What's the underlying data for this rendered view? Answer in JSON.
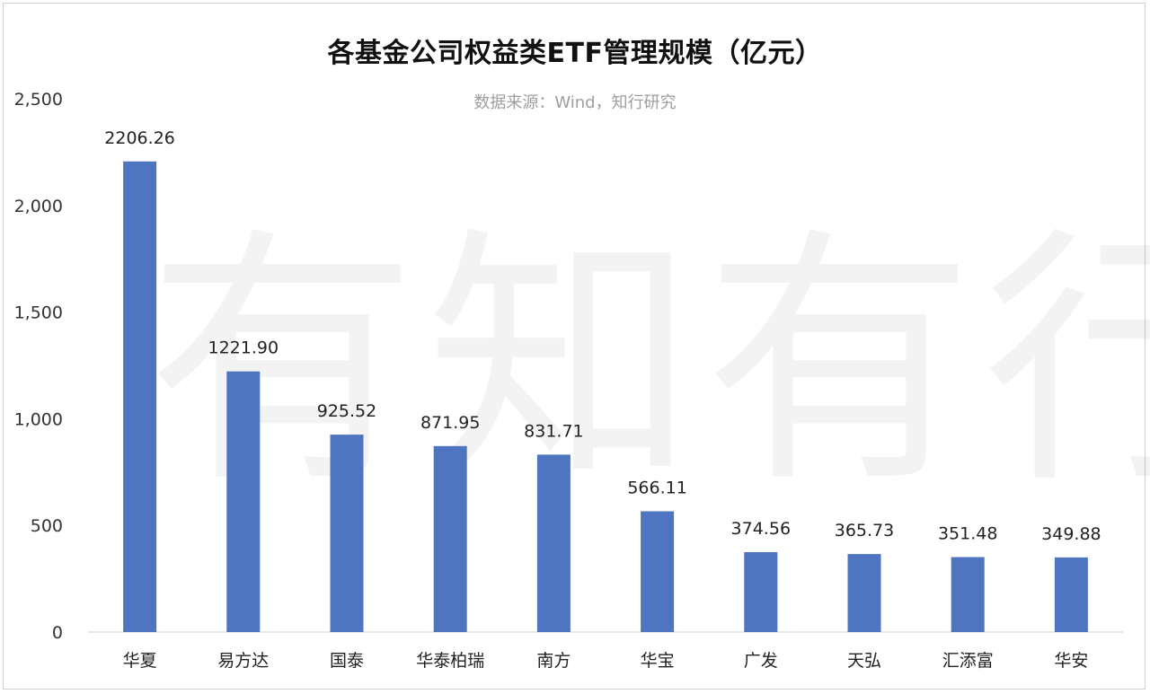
{
  "chart_data": {
    "type": "bar",
    "title": "各基金公司权益类ETF管理规模（亿元）",
    "subtitle": "数据来源：Wind，知行研究",
    "categories": [
      "华夏",
      "易方达",
      "国泰",
      "华泰柏瑞",
      "南方",
      "华宝",
      "广发",
      "天弘",
      "汇添富",
      "华安"
    ],
    "values": [
      2206.26,
      1221.9,
      925.52,
      871.95,
      831.71,
      566.11,
      374.56,
      365.73,
      351.48,
      349.88
    ],
    "data_labels": [
      "2206.26",
      "1221.90",
      "925.52",
      "871.95",
      "831.71",
      "566.11",
      "374.56",
      "365.73",
      "351.48",
      "349.88"
    ],
    "y_ticks": [
      0,
      500,
      1000,
      1500,
      2000,
      2500
    ],
    "y_tick_labels": [
      "0",
      "500",
      "1,000",
      "1,500",
      "2,000",
      "2,500"
    ],
    "ylim": [
      0,
      2500
    ],
    "grid": false,
    "legend": "none",
    "bar_color": "#4f75c0"
  },
  "watermark": "有知有行"
}
